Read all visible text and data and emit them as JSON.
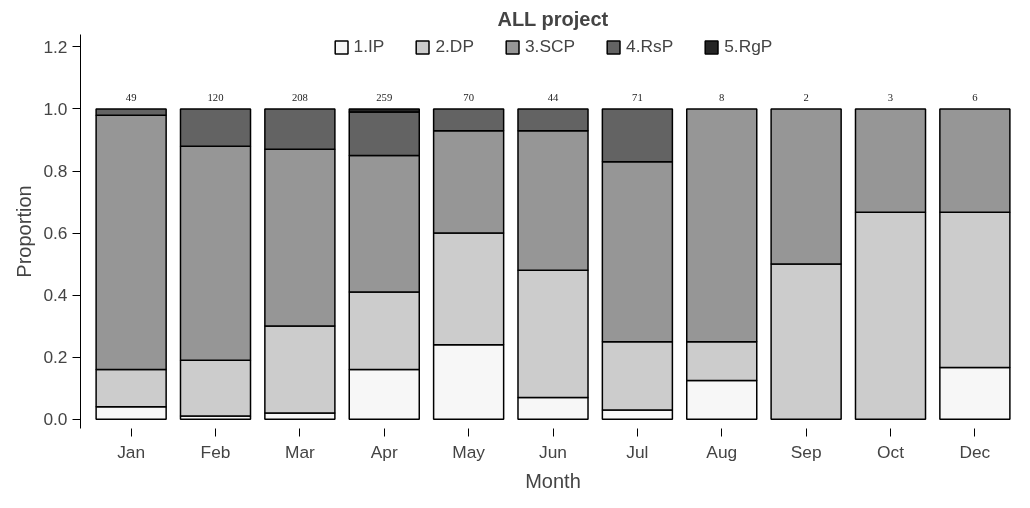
{
  "chart_data": {
    "type": "bar",
    "title": "ALL project",
    "xlabel": "Month",
    "ylabel": "Proportion",
    "stacked": true,
    "categories": [
      "Jan",
      "Feb",
      "Mar",
      "Apr",
      "May",
      "Jun",
      "Jul",
      "Aug",
      "Sep",
      "Oct",
      "Dec"
    ],
    "series": [
      {
        "name": "1.IP",
        "color": "#f7f7f7",
        "values": [
          0.04,
          0.01,
          0.02,
          0.16,
          0.24,
          0.07,
          0.03,
          0.125,
          null,
          null,
          0.167
        ]
      },
      {
        "name": "2.DP",
        "color": "#cccccc",
        "values": [
          0.12,
          0.18,
          0.28,
          0.25,
          0.36,
          0.41,
          0.22,
          0.125,
          0.5,
          0.667,
          0.5
        ]
      },
      {
        "name": "3.SCP",
        "color": "#969696",
        "values": [
          0.82,
          0.69,
          0.57,
          0.44,
          0.33,
          0.45,
          0.58,
          0.75,
          0.5,
          0.333,
          0.333
        ]
      },
      {
        "name": "4.RsP",
        "color": "#636363",
        "values": [
          0.02,
          0.12,
          0.13,
          0.14,
          0.07,
          0.07,
          0.17,
          null,
          null,
          null,
          null
        ]
      },
      {
        "name": "5.RgP",
        "color": "#252525",
        "values": [
          null,
          null,
          null,
          0.01,
          null,
          null,
          null,
          null,
          null,
          null,
          null
        ]
      }
    ],
    "annotations": [
      {
        "text": "49",
        "x": "Jan",
        "y": 1.0
      },
      {
        "text": "120",
        "x": "Feb",
        "y": 1.0
      },
      {
        "text": "208",
        "x": "Mar",
        "y": 1.0
      },
      {
        "text": "259",
        "x": "Apr",
        "y": 1.0
      },
      {
        "text": "70",
        "x": "May",
        "y": 1.0
      },
      {
        "text": "44",
        "x": "Jun",
        "y": 1.0
      },
      {
        "text": "71",
        "x": "Jul",
        "y": 1.0
      },
      {
        "text": "8",
        "x": "Aug",
        "y": 1.0
      },
      {
        "text": "2",
        "x": "Sep",
        "y": 1.0
      },
      {
        "text": "3",
        "x": "Oct",
        "y": 1.0
      },
      {
        "text": "6",
        "x": "Dec",
        "y": 1.0
      }
    ],
    "ylim": [
      -0.03,
      1.24
    ],
    "yticks": [
      {
        "value": 0,
        "label": "0.0"
      },
      {
        "value": 0.2,
        "label": "0.2"
      },
      {
        "value": 0.4,
        "label": "0.4"
      },
      {
        "value": 0.6,
        "label": "0.6"
      },
      {
        "value": 0.8,
        "label": "0.8"
      },
      {
        "value": 1.0,
        "label": "1.0"
      },
      {
        "value": 1.2,
        "label": "1.2"
      }
    ],
    "legend": "top",
    "grid": false
  }
}
